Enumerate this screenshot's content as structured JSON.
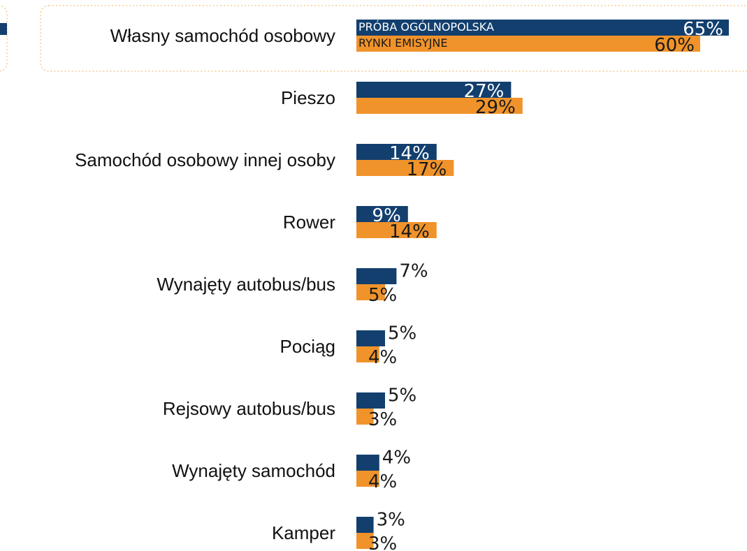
{
  "chart_data": {
    "type": "bar",
    "orientation": "horizontal",
    "categories": [
      "Własny samochód osobowy",
      "Pieszo",
      "Samochód osobowy innej osoby",
      "Rower",
      "Wynajęty autobus/bus",
      "Pociąg",
      "Rejsowy autobus/bus",
      "Wynajęty samochód",
      "Kamper"
    ],
    "series": [
      {
        "name": "PRÓBA OGÓLNOPOLSKA",
        "color": "#123f6e",
        "values": [
          65,
          27,
          14,
          9,
          7,
          5,
          5,
          4,
          3
        ],
        "value_labels": [
          "65%",
          "27%",
          "14%",
          "9%",
          "7%",
          "5%",
          "5%",
          "4%",
          "3%"
        ]
      },
      {
        "name": "RYNKI EMISYJNE",
        "color": "#f0932b",
        "values": [
          60,
          29,
          17,
          14,
          5,
          4,
          3,
          4,
          3
        ],
        "value_labels": [
          "60%",
          "29%",
          "17%",
          "14%",
          "5%",
          "4%",
          "3%",
          "4%",
          "3%"
        ]
      }
    ]
  }
}
